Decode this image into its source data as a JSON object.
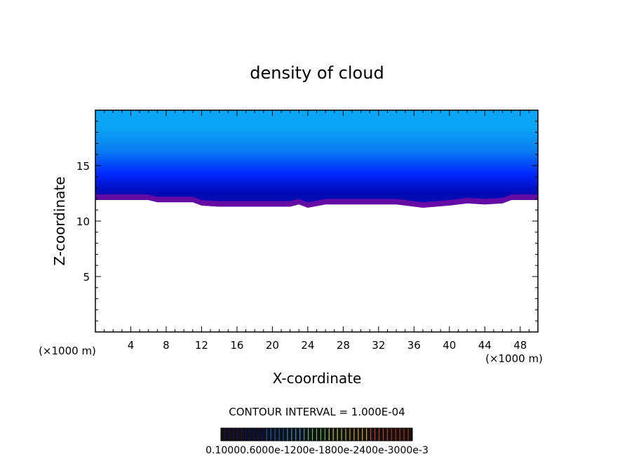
{
  "chart_data": {
    "type": "heatmap",
    "title": "density of cloud",
    "xlabel": "X-coordinate",
    "ylabel": "Z-coordinate",
    "x_unit_left": "(×1000 m)",
    "x_unit_right": "(×1000 m)",
    "xlim": [
      0,
      50
    ],
    "ylim": [
      0,
      20
    ],
    "x_ticks": [
      4,
      8,
      12,
      16,
      20,
      24,
      28,
      32,
      36,
      40,
      44,
      48
    ],
    "y_ticks": [
      5,
      10,
      15
    ],
    "contour_interval": "CONTOUR INTERVAL = 1.000E-04",
    "colorbar_labels": "0.1000e-6 0.6000e-4 0.1200e-3 0.1800e-3 0.2400e-3 0.3000e-3",
    "colorbar_label_text": "0.10000.6000e-1200e-1800e-2400e-3000e-3",
    "colors": {
      "top": "#0aa5f5",
      "upper": "#0a7cf0",
      "mid": "#0028ff",
      "deep": "#000bb4",
      "base": "#6f0aa3",
      "colorbar": [
        "#2a0a5a",
        "#0a0a8a",
        "#0a60d0",
        "#3aa0e0",
        "#60d060",
        "#c0d060",
        "#e0b040",
        "#d04020",
        "#c03010"
      ]
    },
    "cloud_base_profile": {
      "x": [
        0,
        6,
        7,
        11,
        12,
        14,
        17,
        20,
        22,
        23,
        24,
        26,
        30,
        34,
        37,
        40,
        42,
        44,
        46,
        47,
        50
      ],
      "z": [
        11.9,
        11.9,
        11.7,
        11.7,
        11.4,
        11.3,
        11.3,
        11.3,
        11.3,
        11.5,
        11.2,
        11.5,
        11.5,
        11.5,
        11.2,
        11.4,
        11.6,
        11.5,
        11.6,
        11.9,
        11.9
      ]
    },
    "cloud_top": 20
  }
}
